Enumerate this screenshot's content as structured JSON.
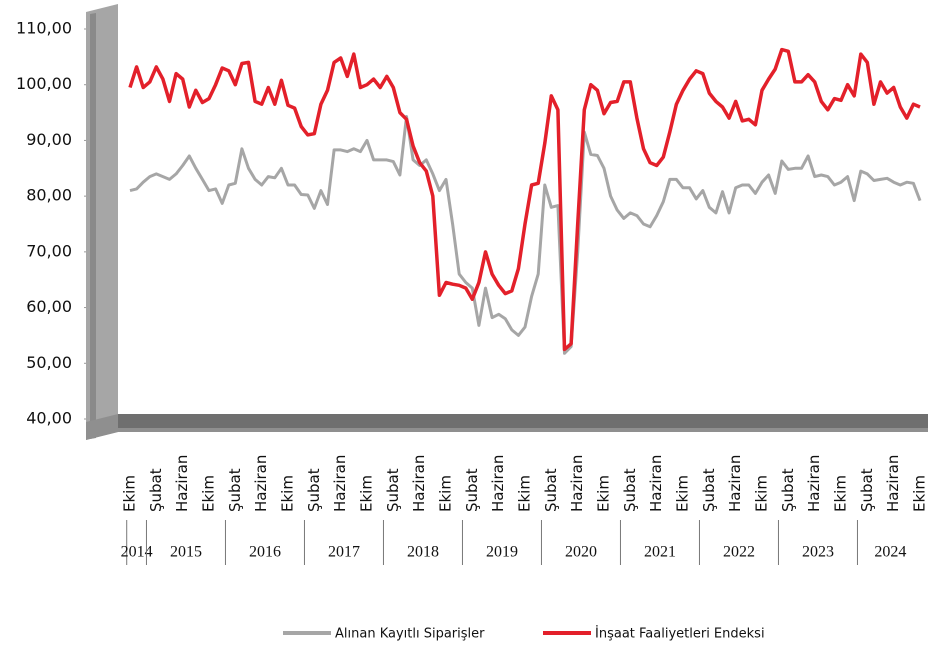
{
  "chart_data": {
    "type": "line",
    "categories": [
      "Ekim",
      null,
      null,
      null,
      "Şubat",
      null,
      null,
      null,
      "Haziran",
      null,
      null,
      null,
      "Ekim",
      null,
      null,
      null,
      "Şubat",
      null,
      null,
      null,
      "Haziran",
      null,
      null,
      null,
      "Ekim",
      null,
      null,
      null,
      "Şubat",
      null,
      null,
      null,
      "Haziran",
      null,
      null,
      null,
      "Ekim",
      null,
      null,
      null,
      "Şubat",
      null,
      null,
      null,
      "Haziran",
      null,
      null,
      null,
      "Ekim",
      null,
      null,
      null,
      "Şubat",
      null,
      null,
      null,
      "Haziran",
      null,
      null,
      null,
      "Ekim",
      null,
      null,
      null,
      "Şubat",
      null,
      null,
      null,
      "Haziran",
      null,
      null,
      null,
      "Ekim",
      null,
      null,
      null,
      "Şubat",
      null,
      null,
      null,
      "Haziran",
      null,
      null,
      null,
      "Ekim",
      null,
      null,
      null,
      "Şubat",
      null,
      null,
      null,
      "Haziran",
      null,
      null,
      null,
      "Ekim",
      null,
      null,
      null,
      "Şubat",
      null,
      null,
      null,
      "Haziran",
      null,
      null,
      null,
      "Ekim",
      null,
      null,
      null,
      "Şubat",
      null,
      null,
      null,
      "Haziran",
      null,
      null,
      null,
      "Ekim"
    ],
    "years": [
      "2014",
      "2015",
      "2016",
      "2017",
      "2018",
      "2019",
      "2020",
      "2021",
      "2022",
      "2023",
      "2024"
    ],
    "series": [
      {
        "name": "Alınan Kayıtlı Siparişler",
        "color": "#a6a6a6",
        "values": [
          81,
          81.3,
          82.5,
          83.5,
          84,
          83.5,
          83,
          84,
          85.5,
          87.2,
          85,
          83,
          81,
          81.3,
          78.7,
          82,
          82.3,
          88.5,
          85,
          83,
          82,
          83.5,
          83.3,
          85,
          82,
          82,
          80.3,
          80.2,
          77.8,
          81,
          78.5,
          88.3,
          88.3,
          88,
          88.5,
          88,
          90,
          86.5,
          86.5,
          86.5,
          86.2,
          83.8,
          94.3,
          86.5,
          85.5,
          86.5,
          84,
          81,
          83,
          75,
          66,
          64.5,
          63.5,
          56.8,
          63.5,
          58.2,
          58.8,
          58,
          56,
          55,
          56.5,
          62,
          66,
          82,
          78,
          78.3,
          51.8,
          53,
          70,
          91.5,
          87.5,
          87.3,
          85,
          80,
          77.5,
          76,
          77,
          76.5,
          75,
          74.5,
          76.5,
          79,
          83,
          83,
          81.5,
          81.5,
          79.5,
          81,
          78,
          77,
          80.8,
          77,
          81.5,
          82,
          82,
          80.5,
          82.5,
          83.8,
          80.5,
          86.3,
          84.8,
          85,
          85,
          87.2,
          83.5,
          83.8,
          83.5,
          82,
          82.5,
          83.5,
          79.2,
          84.5,
          84,
          82.8,
          83,
          83.2,
          82.5,
          82,
          82.5,
          82.3,
          79.2
        ]
      },
      {
        "name": "İnşaat Faaliyetleri Endeksi",
        "color": "#e3202a",
        "values": [
          99.5,
          103.2,
          99.5,
          100.5,
          103.2,
          101,
          97,
          102,
          101,
          96,
          99,
          96.8,
          97.5,
          100,
          103,
          102.5,
          100,
          103.8,
          104,
          97,
          96.5,
          99.5,
          96.5,
          100.8,
          96.3,
          95.8,
          92.5,
          91,
          91.2,
          96.5,
          99,
          104,
          104.8,
          101.5,
          105.5,
          99.5,
          100,
          101,
          99.5,
          101.5,
          99.5,
          95,
          93.8,
          89,
          86,
          84.5,
          80,
          62.2,
          64.5,
          64.2,
          64,
          63.5,
          61.5,
          64.5,
          70,
          66,
          64,
          62.5,
          63,
          67,
          75,
          82,
          82.3,
          89.5,
          98,
          95.5,
          52.5,
          53.5,
          75,
          95.5,
          100,
          99,
          94.8,
          96.8,
          97,
          100.5,
          100.5,
          94,
          88.5,
          86,
          85.5,
          87,
          91.5,
          96.5,
          99,
          101,
          102.5,
          102,
          98.5,
          97,
          96,
          94,
          97,
          93.5,
          93.8,
          92.8,
          99,
          101,
          102.8,
          106.3,
          106,
          100.5,
          100.5,
          101.8,
          100.5,
          97,
          95.5,
          97.5,
          97.2,
          100,
          98,
          105.5,
          104,
          96.5,
          100.5,
          98.5,
          99.5,
          96,
          94,
          96.5,
          96
        ]
      }
    ],
    "ylim": [
      40,
      110
    ],
    "yticks": [
      {
        "value": 40,
        "label": "40,00"
      },
      {
        "value": 50,
        "label": "50,00"
      },
      {
        "value": 60,
        "label": "60,00"
      },
      {
        "value": 70,
        "label": "70,00"
      },
      {
        "value": 80,
        "label": "80,00"
      },
      {
        "value": 90,
        "label": "90,00"
      },
      {
        "value": 100,
        "label": "100,00"
      },
      {
        "value": 110,
        "label": "110,00"
      }
    ],
    "grid": false
  }
}
